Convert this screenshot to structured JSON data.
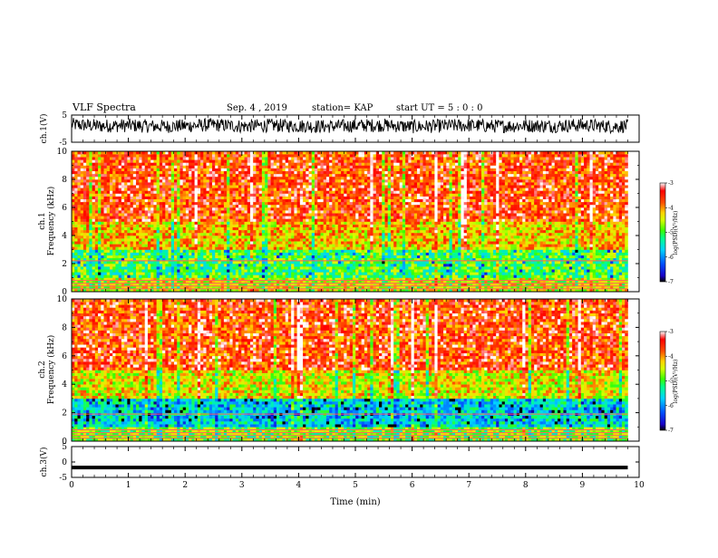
{
  "header": {
    "title": "VLF Spectra",
    "date": "Sep. 4 , 2019",
    "station": "station= KAP",
    "start": "start UT = 5 : 0 : 0"
  },
  "colors": {
    "waveform": "#000000",
    "colormap": [
      "#000000",
      "#1a00c8",
      "#0050ff",
      "#00d2ff",
      "#00ff8c",
      "#3cff00",
      "#d2ff00",
      "#ffd200",
      "#ff5000",
      "#ff0000",
      "#ffffff"
    ]
  },
  "chart_data": [
    {
      "type": "line",
      "id": "ch1-waveform",
      "ylabel": "ch.1(V)",
      "ylim": [
        -5,
        5
      ],
      "yticks": [
        "5",
        "-5"
      ],
      "xlim": [
        0,
        10
      ],
      "series": [
        {
          "x": [
            0,
            0.5,
            1,
            1.5,
            2,
            2.5,
            3,
            3.5,
            4,
            4.5,
            5,
            5.5,
            6,
            6.5,
            7,
            7.5,
            8,
            8.5,
            9,
            9.5,
            9.8
          ],
          "y": [
            1.5,
            1.0,
            1.2,
            0.8,
            1.0,
            1.4,
            0.9,
            1.2,
            1.0,
            0.8,
            1.1,
            1.3,
            0.7,
            1.0,
            1.2,
            0.9,
            1.1,
            1.0,
            1.3,
            0.8,
            1.0
          ]
        }
      ]
    },
    {
      "type": "heatmap",
      "id": "ch1-spectrogram",
      "ylabel_line1": "ch.1",
      "ylabel_line2": "Frequency (kHz)",
      "xlim": [
        0,
        10
      ],
      "ylim": [
        0,
        10
      ],
      "yticks": [
        "0",
        "2",
        "4",
        "6",
        "8",
        "10"
      ],
      "colorbar": {
        "label": "log(PSD)(V²/Hz)",
        "range": [
          -7,
          -3
        ],
        "ticks": [
          "-3",
          "-4",
          "-5",
          "-6",
          "-7"
        ]
      },
      "data_end_min": 9.8,
      "bands": [
        {
          "freq_range_khz": [
            0,
            1
          ],
          "log_psd": -4.5,
          "note": "narrow horizontal lines"
        },
        {
          "freq_range_khz": [
            1,
            3
          ],
          "log_psd": -5.0
        },
        {
          "freq_range_khz": [
            3,
            5
          ],
          "log_psd": -4.2
        },
        {
          "freq_range_khz": [
            5,
            10
          ],
          "log_psd": -3.6
        }
      ],
      "line_freqs_khz": [
        0.2,
        0.4,
        0.6,
        0.8,
        2.2
      ]
    },
    {
      "type": "heatmap",
      "id": "ch2-spectrogram",
      "ylabel_line1": "ch.2",
      "ylabel_line2": "Frequency (kHz)",
      "xlim": [
        0,
        10
      ],
      "ylim": [
        0,
        10
      ],
      "yticks": [
        "0",
        "2",
        "4",
        "6",
        "8",
        "10"
      ],
      "colorbar": {
        "label": "log(PSD)(V²/Hz)",
        "range": [
          -7,
          -3
        ],
        "ticks": [
          "-3",
          "-4",
          "-5",
          "-6",
          "-7"
        ]
      },
      "data_end_min": 9.8,
      "bands": [
        {
          "freq_range_khz": [
            0,
            1
          ],
          "log_psd": -4.8,
          "note": "narrow horizontal lines"
        },
        {
          "freq_range_khz": [
            1,
            3
          ],
          "log_psd": -5.6
        },
        {
          "freq_range_khz": [
            3,
            5
          ],
          "log_psd": -4.4
        },
        {
          "freq_range_khz": [
            5,
            10
          ],
          "log_psd": -3.6
        }
      ],
      "line_freqs_khz": [
        0.2,
        0.4,
        0.6,
        0.8,
        1.9
      ]
    },
    {
      "type": "line",
      "id": "ch3-waveform",
      "ylabel": "ch.3(V)",
      "ylim": [
        -5,
        5
      ],
      "yticks": [
        "5",
        "0",
        "-5"
      ],
      "xlim": [
        0,
        10
      ],
      "xlabel": "Time (min)",
      "xticks": [
        "0",
        "1",
        "2",
        "3",
        "4",
        "5",
        "6",
        "7",
        "8",
        "9",
        "10"
      ],
      "series": [
        {
          "x": [
            0,
            9.8
          ],
          "y": [
            -1.8,
            -1.8
          ]
        }
      ]
    }
  ]
}
